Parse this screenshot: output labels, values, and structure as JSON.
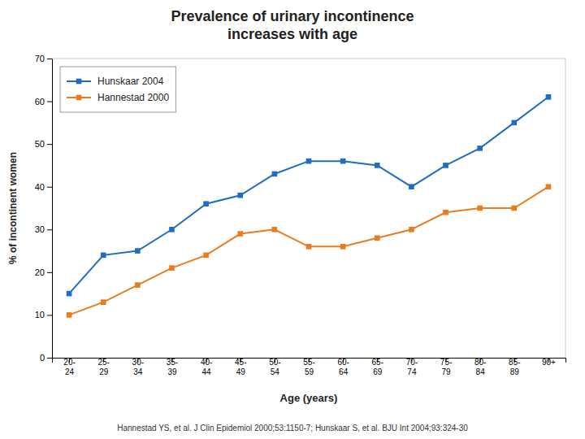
{
  "chart_data": {
    "type": "line",
    "title": "Prevalence of urinary incontinence",
    "subtitle": "increases with age",
    "xlabel": "Age (years)",
    "ylabel": "% of incontinent women",
    "annotations": [
      "Hannestad YS, et al. J Clin Epidemiol 2000;53:1150-7; Hunskaar S, et al. BJU Int 2004;93:324-30"
    ],
    "categories": [
      "20-\n24",
      "25-\n29",
      "30-\n34",
      "35-\n39",
      "40-\n44",
      "45-\n49",
      "50-\n54",
      "55-\n59",
      "60-\n64",
      "65-\n69",
      "70-\n74",
      "75-\n79",
      "80-\n84",
      "85-\n89",
      "90+"
    ],
    "series": [
      {
        "name": "Hunskaar 2004",
        "color": "#1F6DC2",
        "marker": "square",
        "values": [
          15,
          24,
          25,
          30,
          36,
          38,
          43,
          46,
          46,
          45,
          40,
          45,
          49,
          55,
          61
        ]
      },
      {
        "name": "Hannestad 2000",
        "color": "#E87C1E",
        "marker": "square",
        "values": [
          10,
          13,
          17,
          21,
          24,
          29,
          30,
          26,
          26,
          28,
          30,
          34,
          35,
          35,
          40
        ]
      }
    ],
    "ylim": [
      0,
      70
    ],
    "yticks": [
      0,
      10,
      20,
      30,
      40,
      50,
      60,
      70
    ],
    "grid": false,
    "legend": "upper left"
  }
}
